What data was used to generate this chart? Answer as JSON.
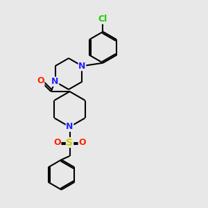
{
  "bg_color": "#e8e8e8",
  "bond_color": "#000000",
  "N_color": "#2222ff",
  "O_color": "#ff2200",
  "S_color": "#cccc00",
  "Cl_color": "#22cc00",
  "lw": 1.5,
  "fs": 9,
  "xlim": [
    0,
    1
  ],
  "ylim": [
    0,
    1
  ]
}
